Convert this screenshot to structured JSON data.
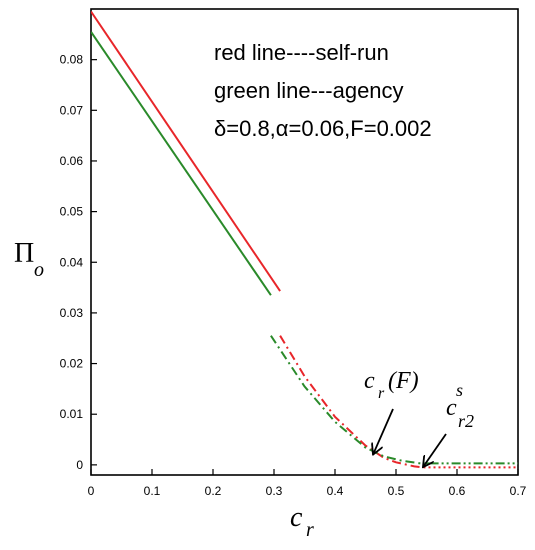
{
  "chart_data": {
    "type": "line",
    "xlabel": "c",
    "xlabel_sub": "r",
    "ylabel": "Π",
    "ylabel_sub": "o",
    "xlim": [
      0,
      0.7
    ],
    "ylim": [
      -0.002,
      0.09
    ],
    "x_ticks": [
      "0",
      "0.1",
      "0.2",
      "0.3",
      "0.4",
      "0.5",
      "0.6",
      "0.7"
    ],
    "y_ticks": [
      "0",
      "0.01",
      "0.02",
      "0.03",
      "0.04",
      "0.05",
      "0.06",
      "0.07",
      "0.08"
    ],
    "grid": false,
    "legend_lines": [
      "red line----self-run",
      "green line---agency",
      "δ=0.8,α=0.06,F=0.002"
    ],
    "series": [
      {
        "color": "#e8262a",
        "segments": [
          {
            "style": "solid",
            "x": [
              0.0,
              0.31
            ],
            "y": [
              0.0895,
              0.0343
            ]
          },
          {
            "style": "dashdot",
            "x": [
              0.31,
              0.35,
              0.4,
              0.45,
              0.48,
              0.5,
              0.53,
              0.545
            ],
            "y": [
              0.0255,
              0.0175,
              0.0095,
              0.0038,
              0.0014,
              0.0005,
              -0.0003,
              -0.0005
            ]
          },
          {
            "style": "dotted",
            "x": [
              0.545,
              0.7
            ],
            "y": [
              -0.0005,
              -0.0005
            ]
          }
        ]
      },
      {
        "color": "#2a8a2a",
        "segments": [
          {
            "style": "solid",
            "x": [
              0.0,
              0.295
            ],
            "y": [
              0.0855,
              0.0335
            ]
          },
          {
            "style": "dashdot",
            "x": [
              0.295,
              0.35,
              0.4,
              0.45,
              0.48,
              0.51,
              0.54,
              0.555
            ],
            "y": [
              0.0255,
              0.0155,
              0.0085,
              0.0034,
              0.0017,
              0.0008,
              0.0003,
              0.0003
            ]
          },
          {
            "style": "dashdotdot",
            "x": [
              0.555,
              0.7
            ],
            "y": [
              0.0003,
              0.0003
            ]
          }
        ]
      }
    ],
    "annotations": [
      {
        "text": "c",
        "sub": "r",
        "tail": "(F)",
        "arrow_to": {
          "x": 0.463,
          "y": 0.0022
        }
      },
      {
        "text": "c",
        "sub": "r2",
        "sup": "s",
        "arrow_to": {
          "x": 0.545,
          "y": -0.0003
        }
      }
    ]
  },
  "colors": {
    "frame": "#000000",
    "background": "#ffffff"
  }
}
